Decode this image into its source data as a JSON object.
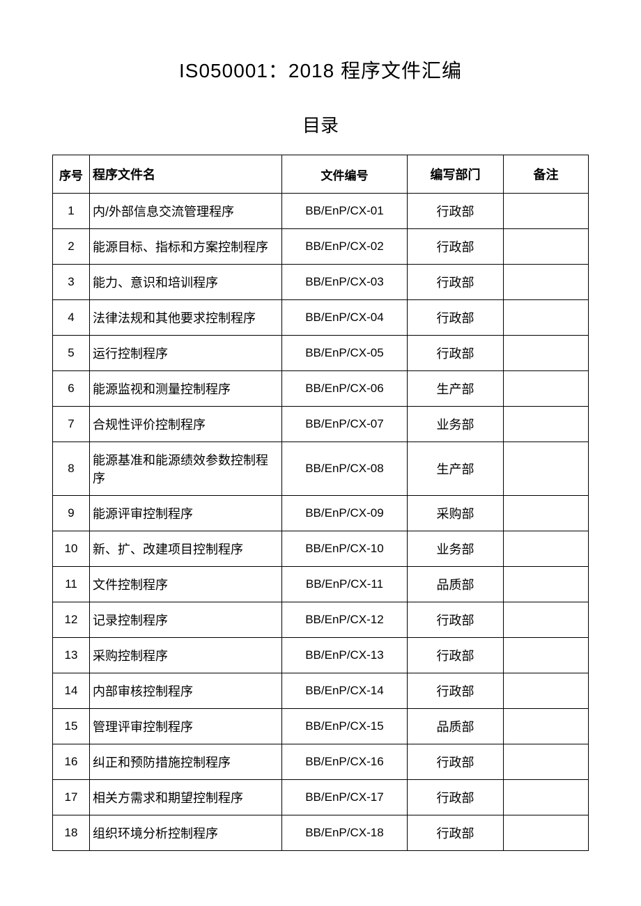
{
  "title": "IS050001：2018 程序文件汇编",
  "subtitle": "目录",
  "table": {
    "columns": [
      "序号",
      "程序文件名",
      "文件编号",
      "编写部门",
      "备注"
    ],
    "rows": [
      {
        "seq": "1",
        "name": "内/外部信息交流管理程序",
        "code": "BB/EnP/CX-01",
        "dept": "行政部",
        "remark": ""
      },
      {
        "seq": "2",
        "name": "能源目标、指标和方案控制程序",
        "code": "BB/EnP/CX-02",
        "dept": "行政部",
        "remark": ""
      },
      {
        "seq": "3",
        "name": "能力、意识和培训程序",
        "code": "BB/EnP/CX-03",
        "dept": "行政部",
        "remark": ""
      },
      {
        "seq": "4",
        "name": "法律法规和其他要求控制程序",
        "code": "BB/EnP/CX-04",
        "dept": "行政部",
        "remark": ""
      },
      {
        "seq": "5",
        "name": "运行控制程序",
        "code": "BB/EnP/CX-05",
        "dept": "行政部",
        "remark": ""
      },
      {
        "seq": "6",
        "name": "能源监视和测量控制程序",
        "code": "BB/EnP/CX-06",
        "dept": "生产部",
        "remark": ""
      },
      {
        "seq": "7",
        "name": "合规性评价控制程序",
        "code": "BB/EnP/CX-07",
        "dept": "业务部",
        "remark": ""
      },
      {
        "seq": "8",
        "name": "能源基准和能源绩效参数控制程序",
        "code": "BB/EnP/CX-08",
        "dept": "生产部",
        "remark": ""
      },
      {
        "seq": "9",
        "name": "能源评审控制程序",
        "code": "BB/EnP/CX-09",
        "dept": "采购部",
        "remark": ""
      },
      {
        "seq": "10",
        "name": "新、扩、改建项目控制程序",
        "code": "BB/EnP/CX-10",
        "dept": "业务部",
        "remark": ""
      },
      {
        "seq": "11",
        "name": "文件控制程序",
        "code": "BB/EnP/CX-11",
        "dept": "品质部",
        "remark": ""
      },
      {
        "seq": "12",
        "name": "记录控制程序",
        "code": "BB/EnP/CX-12",
        "dept": "行政部",
        "remark": ""
      },
      {
        "seq": "13",
        "name": "采购控制程序",
        "code": "BB/EnP/CX-13",
        "dept": "行政部",
        "remark": ""
      },
      {
        "seq": "14",
        "name": "内部审核控制程序",
        "code": "BB/EnP/CX-14",
        "dept": "行政部",
        "remark": ""
      },
      {
        "seq": "15",
        "name": "管理评审控制程序",
        "code": "BB/EnP/CX-15",
        "dept": "品质部",
        "remark": ""
      },
      {
        "seq": "16",
        "name": "纠正和预防措施控制程序",
        "code": "BB/EnP/CX-16",
        "dept": "行政部",
        "remark": ""
      },
      {
        "seq": "17",
        "name": "相关方需求和期望控制程序",
        "code": "BB/EnP/CX-17",
        "dept": "行政部",
        "remark": ""
      },
      {
        "seq": "18",
        "name": "组织环境分析控制程序",
        "code": "BB/EnP/CX-18",
        "dept": "行政部",
        "remark": ""
      }
    ]
  }
}
